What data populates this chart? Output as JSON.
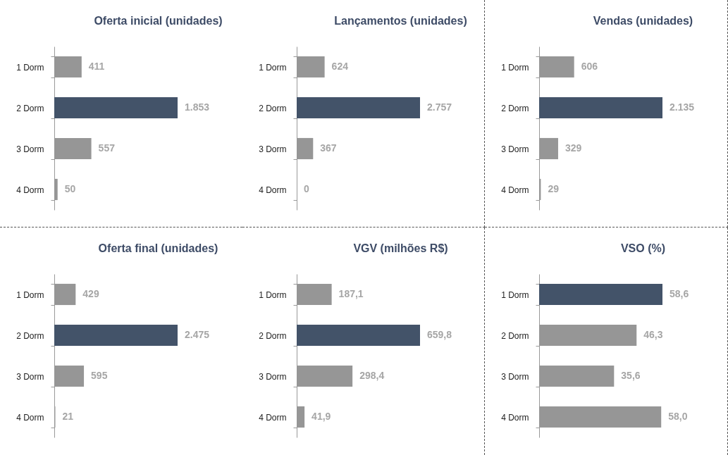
{
  "chart_data": [
    {
      "type": "bar",
      "orientation": "horizontal",
      "title": "Oferta inicial (unidades)",
      "categories": [
        "1 Dorm",
        "2 Dorm",
        "3 Dorm",
        "4 Dorm"
      ],
      "values": [
        411,
        1853,
        557,
        50
      ],
      "colors": [
        "#969696",
        "#435369",
        "#969696",
        "#969696"
      ],
      "value_labels": [
        "411",
        "1.853",
        "557",
        "50"
      ]
    },
    {
      "type": "bar",
      "orientation": "horizontal",
      "title": "Lançamentos (unidades)",
      "categories": [
        "1 Dorm",
        "2 Dorm",
        "3 Dorm",
        "4 Dorm"
      ],
      "values": [
        624,
        2757,
        367,
        0
      ],
      "colors": [
        "#969696",
        "#435369",
        "#969696",
        "#969696"
      ],
      "value_labels": [
        "624",
        "2.757",
        "367",
        "0"
      ]
    },
    {
      "type": "bar",
      "orientation": "horizontal",
      "title": "Vendas (unidades)",
      "categories": [
        "1 Dorm",
        "2 Dorm",
        "3 Dorm",
        "4 Dorm"
      ],
      "values": [
        606,
        2135,
        329,
        29
      ],
      "colors": [
        "#969696",
        "#435369",
        "#969696",
        "#969696"
      ],
      "value_labels": [
        "606",
        "2.135",
        "329",
        "29"
      ]
    },
    {
      "type": "bar",
      "orientation": "horizontal",
      "title": "Oferta final (unidades)",
      "categories": [
        "1 Dorm",
        "2 Dorm",
        "3 Dorm",
        "4 Dorm"
      ],
      "values": [
        429,
        2475,
        595,
        21
      ],
      "colors": [
        "#969696",
        "#435369",
        "#969696",
        "#969696"
      ],
      "value_labels": [
        "429",
        "2.475",
        "595",
        "21"
      ]
    },
    {
      "type": "bar",
      "orientation": "horizontal",
      "title": "VGV (milhões R$)",
      "categories": [
        "1 Dorm",
        "2 Dorm",
        "3 Dorm",
        "4 Dorm"
      ],
      "values": [
        187.1,
        659.8,
        298.4,
        41.9
      ],
      "colors": [
        "#969696",
        "#435369",
        "#969696",
        "#969696"
      ],
      "value_labels": [
        "187,1",
        "659,8",
        "298,4",
        "41,9"
      ]
    },
    {
      "type": "bar",
      "orientation": "horizontal",
      "title": "VSO (%)",
      "categories": [
        "1 Dorm",
        "2 Dorm",
        "3 Dorm",
        "4 Dorm"
      ],
      "values": [
        58.6,
        46.3,
        35.6,
        58.0
      ],
      "colors": [
        "#435369",
        "#969696",
        "#969696",
        "#969696"
      ],
      "value_labels": [
        "58,6",
        "46,3",
        "35,6",
        "58,0"
      ]
    }
  ]
}
